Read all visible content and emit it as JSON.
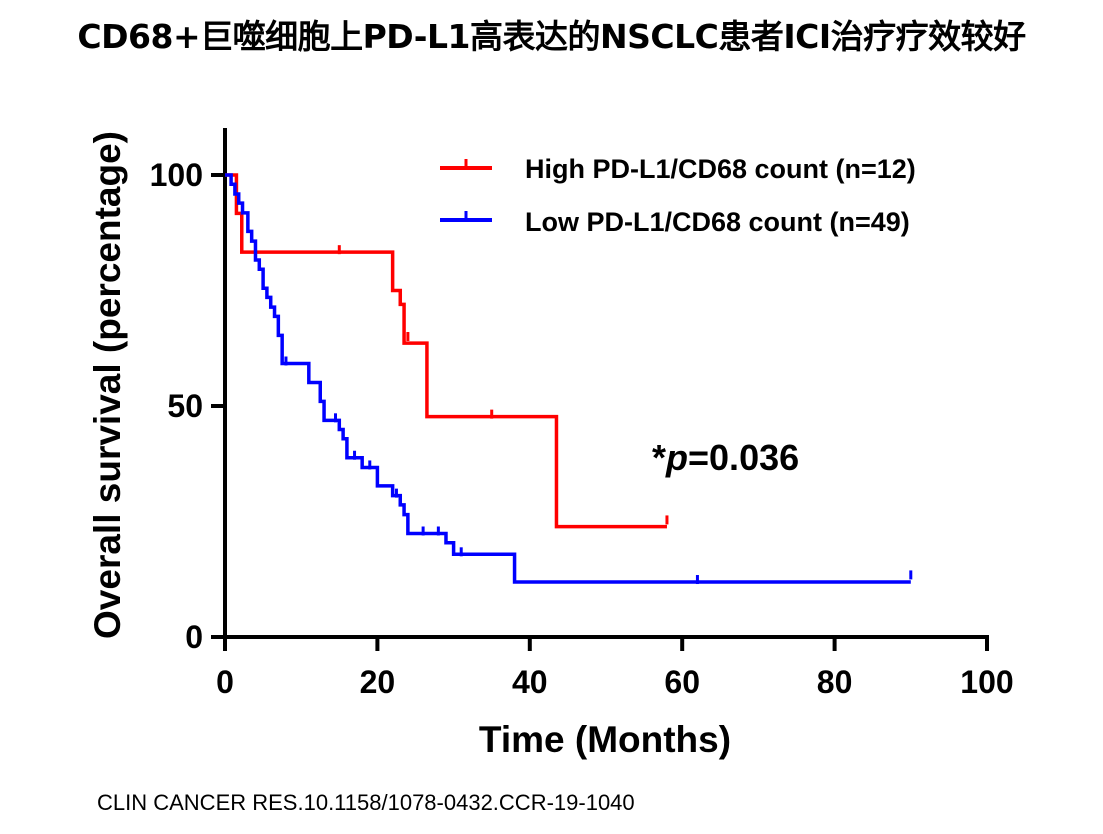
{
  "title": "CD68+巨噬细胞上PD-L1高表达的NSCLC患者ICI治疗疗效较好",
  "citation": "CLIN CANCER RES.10.1158/1078-0432.CCR-19-1040",
  "chart_data": {
    "type": "line",
    "subtype": "kaplan-meier step",
    "title": "",
    "xlabel": "Time (Months)",
    "ylabel": "Overall survival (percentage)",
    "xlim": [
      0,
      100
    ],
    "ylim": [
      0,
      100
    ],
    "x_ticks": [
      0,
      20,
      40,
      60,
      80,
      100
    ],
    "y_ticks": [
      0,
      50,
      100
    ],
    "grid": false,
    "legend_position": "top-right",
    "annotation": {
      "star": "*",
      "p_symbol": "p",
      "p_value": "=0.036"
    },
    "series": [
      {
        "name": "High PD-L1/CD68 count (n=12)",
        "color": "#ff0000",
        "steps": [
          [
            0,
            100
          ],
          [
            1.5,
            91.7
          ],
          [
            2.2,
            83.3
          ],
          [
            22,
            75
          ],
          [
            23,
            72
          ],
          [
            23.5,
            63.6
          ],
          [
            26.5,
            47.7
          ],
          [
            43.5,
            23.9
          ],
          [
            58,
            23.9
          ]
        ],
        "censored": [
          [
            15,
            83.3
          ],
          [
            24,
            64.5
          ],
          [
            35,
            47.7
          ],
          [
            58,
            24.8
          ]
        ]
      },
      {
        "name": "Low PD-L1/CD68 count (n=49)",
        "color": "#0000ff",
        "steps": [
          [
            0,
            100
          ],
          [
            0.8,
            98
          ],
          [
            1.3,
            95.9
          ],
          [
            1.8,
            93.9
          ],
          [
            2.3,
            91.8
          ],
          [
            3,
            87.8
          ],
          [
            3.5,
            85.7
          ],
          [
            4,
            81.6
          ],
          [
            4.5,
            79.6
          ],
          [
            5,
            75.5
          ],
          [
            5.5,
            73.5
          ],
          [
            6,
            71.4
          ],
          [
            6.5,
            69.4
          ],
          [
            7,
            65.3
          ],
          [
            7.5,
            59.2
          ],
          [
            11,
            55.1
          ],
          [
            12.5,
            51
          ],
          [
            13,
            46.9
          ],
          [
            15,
            44.9
          ],
          [
            15.5,
            42.9
          ],
          [
            16,
            38.8
          ],
          [
            18,
            36.7
          ],
          [
            20,
            32.7
          ],
          [
            22,
            30.6
          ],
          [
            23,
            28.6
          ],
          [
            23.5,
            26.5
          ],
          [
            24,
            22.4
          ],
          [
            29,
            20.4
          ],
          [
            30,
            17.9
          ],
          [
            38,
            11.9
          ],
          [
            90,
            11.9
          ]
        ],
        "censored": [
          [
            8,
            59.2
          ],
          [
            14.5,
            46.9
          ],
          [
            17,
            38.8
          ],
          [
            19,
            36.7
          ],
          [
            22.5,
            30.6
          ],
          [
            26,
            22.4
          ],
          [
            28,
            22.4
          ],
          [
            31,
            17.9
          ],
          [
            62,
            11.9
          ],
          [
            90,
            12.9
          ]
        ]
      }
    ]
  }
}
